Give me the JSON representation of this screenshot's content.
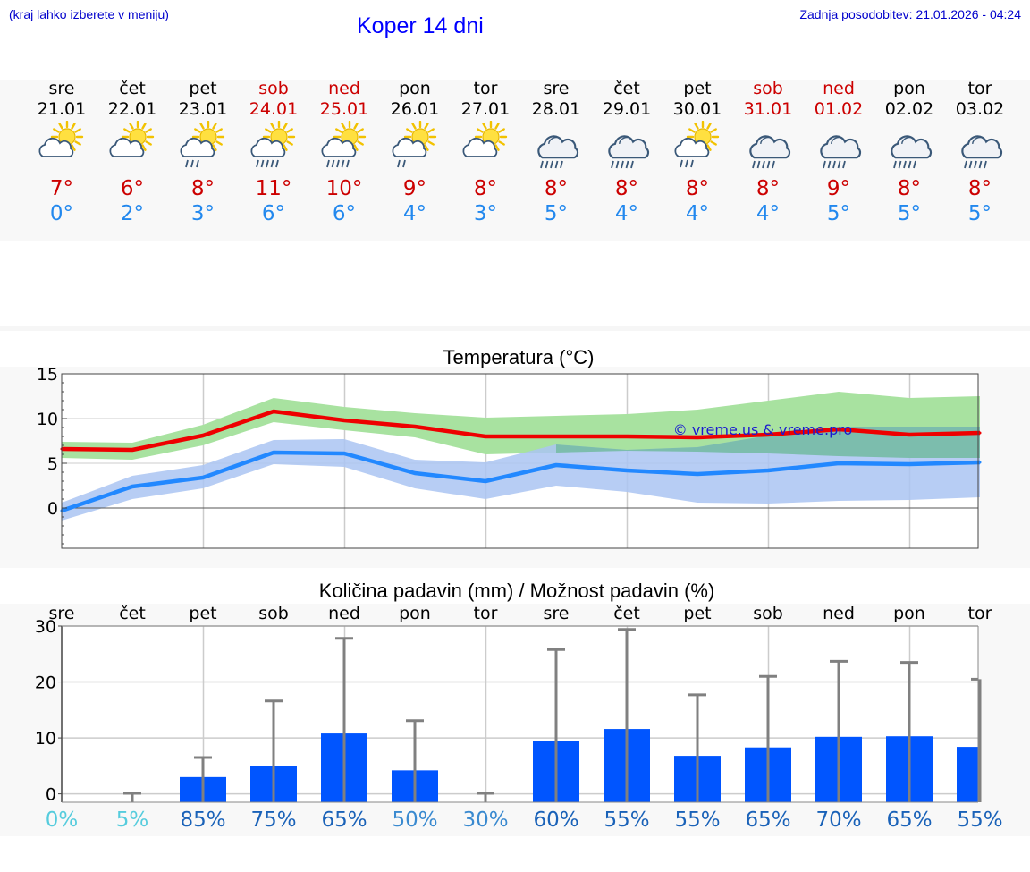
{
  "header": {
    "note": "(kraj lahko izberete v meniju)",
    "title": "Koper 14 dni",
    "updated": "Zadnja posodobitev: 21.01.2026 - 04:24"
  },
  "days": [
    {
      "name": "sre",
      "date": "21.01",
      "weekend": false,
      "icon": "sun-cloud-icon",
      "tmax": "7°",
      "tmin": "0°"
    },
    {
      "name": "čet",
      "date": "22.01",
      "weekend": false,
      "icon": "sun-cloud-icon",
      "tmax": "6°",
      "tmin": "2°"
    },
    {
      "name": "pet",
      "date": "23.01",
      "weekend": false,
      "icon": "sun-cloud-light-rain-icon",
      "tmax": "8°",
      "tmin": "3°"
    },
    {
      "name": "sob",
      "date": "24.01",
      "weekend": true,
      "icon": "sun-cloud-rain-icon",
      "tmax": "11°",
      "tmin": "6°"
    },
    {
      "name": "ned",
      "date": "25.01",
      "weekend": true,
      "icon": "sun-cloud-rain-icon",
      "tmax": "10°",
      "tmin": "6°"
    },
    {
      "name": "pon",
      "date": "26.01",
      "weekend": false,
      "icon": "sun-cloud-drizzle-icon",
      "tmax": "9°",
      "tmin": "4°"
    },
    {
      "name": "tor",
      "date": "27.01",
      "weekend": false,
      "icon": "sun-cloud-icon",
      "tmax": "8°",
      "tmin": "3°"
    },
    {
      "name": "sre",
      "date": "28.01",
      "weekend": false,
      "icon": "cloud-rain-icon",
      "tmax": "8°",
      "tmin": "5°"
    },
    {
      "name": "čet",
      "date": "29.01",
      "weekend": false,
      "icon": "cloud-rain-icon",
      "tmax": "8°",
      "tmin": "4°"
    },
    {
      "name": "pet",
      "date": "30.01",
      "weekend": false,
      "icon": "sun-cloud-light-rain-icon",
      "tmax": "8°",
      "tmin": "4°"
    },
    {
      "name": "sob",
      "date": "31.01",
      "weekend": true,
      "icon": "cloud-rain-icon",
      "tmax": "8°",
      "tmin": "4°"
    },
    {
      "name": "ned",
      "date": "01.02",
      "weekend": true,
      "icon": "cloud-rain-icon",
      "tmax": "9°",
      "tmin": "5°"
    },
    {
      "name": "pon",
      "date": "02.02",
      "weekend": false,
      "icon": "cloud-rain-icon",
      "tmax": "8°",
      "tmin": "5°"
    },
    {
      "name": "tor",
      "date": "03.02",
      "weekend": false,
      "icon": "cloud-rain-icon",
      "tmax": "8°",
      "tmin": "5°"
    }
  ],
  "chart_data": [
    {
      "type": "line",
      "title": "Temperatura (°C)",
      "watermark": "© vreme.us & vreme.pro",
      "ylim": [
        -4.5,
        15
      ],
      "yticks": [
        0,
        5,
        10,
        15
      ],
      "x": [
        0,
        1,
        2,
        3,
        4,
        5,
        6,
        7,
        8,
        9,
        10,
        11,
        12,
        13
      ],
      "series": [
        {
          "name": "max",
          "color": "#ee0000",
          "values": [
            6.6,
            6.5,
            8.1,
            10.8,
            9.8,
            9.1,
            8.0,
            8.0,
            8.0,
            7.9,
            8.2,
            8.8,
            8.2,
            8.4
          ],
          "band_low": [
            5.6,
            5.4,
            7.0,
            9.6,
            8.7,
            7.9,
            6.0,
            6.2,
            6.4,
            6.3,
            6.1,
            5.8,
            5.6,
            5.6
          ],
          "band_high": [
            7.4,
            7.3,
            9.3,
            12.3,
            11.3,
            10.6,
            10.1,
            10.3,
            10.5,
            11.0,
            12.0,
            13.0,
            12.3,
            12.5
          ],
          "band_color": "#a8e2a0"
        },
        {
          "name": "min",
          "color": "#2288ff",
          "values": [
            -0.3,
            2.4,
            3.4,
            6.2,
            6.1,
            3.9,
            3.0,
            4.8,
            4.2,
            3.8,
            4.2,
            5.0,
            4.9,
            5.1
          ],
          "band_low": [
            -1.4,
            1.0,
            2.2,
            4.9,
            4.6,
            2.2,
            1.0,
            2.5,
            1.8,
            0.6,
            0.5,
            0.8,
            0.9,
            1.2
          ],
          "band_high": [
            0.6,
            3.6,
            4.8,
            7.6,
            7.7,
            5.4,
            5.1,
            7.1,
            6.5,
            6.8,
            8.1,
            9.1,
            9.1,
            9.1
          ],
          "band_color": "#aac4f2"
        }
      ]
    },
    {
      "type": "bar",
      "title": "Količina padavin (mm) / Možnost padavin (%)",
      "ylim": [
        -1.5,
        30
      ],
      "yticks": [
        0,
        10,
        20,
        30
      ],
      "categories": [
        "sre",
        "čet",
        "pet",
        "sob",
        "ned",
        "pon",
        "tor",
        "sre",
        "čet",
        "pet",
        "sob",
        "ned",
        "pon",
        "tor"
      ],
      "values": [
        0,
        0,
        3.0,
        5.0,
        10.8,
        4.2,
        0,
        9.5,
        11.6,
        6.8,
        8.3,
        10.2,
        10.3,
        8.4
      ],
      "error_high": [
        0,
        0.1,
        6.5,
        16.6,
        27.8,
        13.1,
        0.1,
        25.8,
        29.4,
        17.7,
        21.0,
        23.7,
        23.5,
        20.5
      ],
      "chance": [
        "0%",
        "5%",
        "85%",
        "75%",
        "65%",
        "50%",
        "30%",
        "60%",
        "55%",
        "55%",
        "65%",
        "70%",
        "65%",
        "55%"
      ],
      "chance_colors": [
        "#55ccdd",
        "#55ccdd",
        "#1a62b8",
        "#1a62b8",
        "#1a62b8",
        "#3a8ad0",
        "#3a8ad0",
        "#1a62b8",
        "#1a62b8",
        "#1a62b8",
        "#1a62b8",
        "#1a62b8",
        "#1a62b8",
        "#1a62b8"
      ],
      "bar_color": "#0055ff"
    }
  ]
}
